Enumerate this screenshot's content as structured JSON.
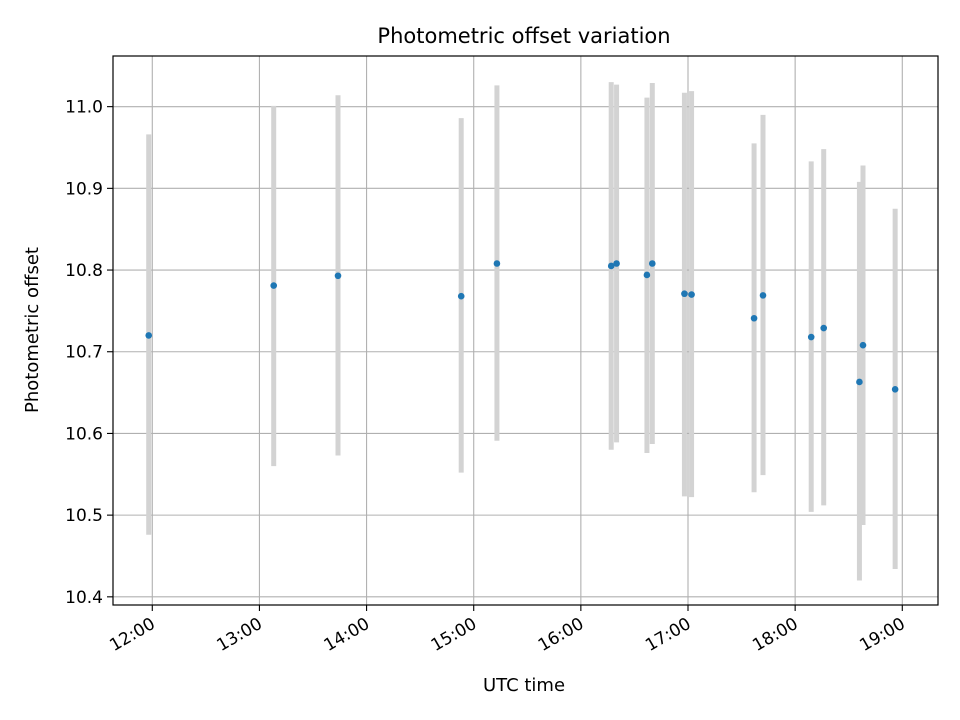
{
  "chart_data": {
    "type": "scatter",
    "title": "Photometric offset variation",
    "xlabel": "UTC time",
    "ylabel": "Photometric offset",
    "x_is_time": true,
    "xlim": [
      "11:38",
      "19:20"
    ],
    "ylim": [
      10.39,
      11.062
    ],
    "x_ticks": [
      "12:00",
      "13:00",
      "14:00",
      "15:00",
      "16:00",
      "17:00",
      "18:00",
      "19:00"
    ],
    "y_ticks": [
      10.4,
      10.5,
      10.6,
      10.7,
      10.8,
      10.9,
      11.0
    ],
    "y_tick_labels": [
      "10.4",
      "10.5",
      "10.6",
      "10.7",
      "10.8",
      "10.9",
      "11.0"
    ],
    "grid": true,
    "colors": {
      "point": "#1f77b4",
      "errorbar": "#d3d3d3",
      "grid": "#b0b0b0",
      "axes": "#000000"
    },
    "series": [
      {
        "points": [
          {
            "x": "11:58",
            "y": 10.72,
            "yerr": [
              10.476,
              10.966
            ]
          },
          {
            "x": "13:08",
            "y": 10.781,
            "yerr": [
              10.56,
              11.001
            ]
          },
          {
            "x": "13:44",
            "y": 10.793,
            "yerr": [
              10.573,
              11.014
            ]
          },
          {
            "x": "14:53",
            "y": 10.768,
            "yerr": [
              10.552,
              10.986
            ]
          },
          {
            "x": "15:13",
            "y": 10.808,
            "yerr": [
              10.591,
              11.026
            ]
          },
          {
            "x": "16:17",
            "y": 10.805,
            "yerr": [
              10.58,
              11.03
            ]
          },
          {
            "x": "16:20",
            "y": 10.808,
            "yerr": [
              10.589,
              11.027
            ]
          },
          {
            "x": "16:37",
            "y": 10.794,
            "yerr": [
              10.576,
              11.011
            ]
          },
          {
            "x": "16:40",
            "y": 10.808,
            "yerr": [
              10.587,
              11.029
            ]
          },
          {
            "x": "16:58",
            "y": 10.771,
            "yerr": [
              10.523,
              11.017
            ]
          },
          {
            "x": "17:02",
            "y": 10.77,
            "yerr": [
              10.522,
              11.019
            ]
          },
          {
            "x": "17:37",
            "y": 10.741,
            "yerr": [
              10.528,
              10.955
            ]
          },
          {
            "x": "17:42",
            "y": 10.769,
            "yerr": [
              10.549,
              10.99
            ]
          },
          {
            "x": "18:09",
            "y": 10.718,
            "yerr": [
              10.504,
              10.933
            ]
          },
          {
            "x": "18:16",
            "y": 10.729,
            "yerr": [
              10.512,
              10.948
            ]
          },
          {
            "x": "18:36",
            "y": 10.663,
            "yerr": [
              10.42,
              10.908
            ]
          },
          {
            "x": "18:38",
            "y": 10.708,
            "yerr": [
              10.488,
              10.928
            ]
          },
          {
            "x": "18:56",
            "y": 10.654,
            "yerr": [
              10.434,
              10.875
            ]
          }
        ]
      }
    ]
  }
}
